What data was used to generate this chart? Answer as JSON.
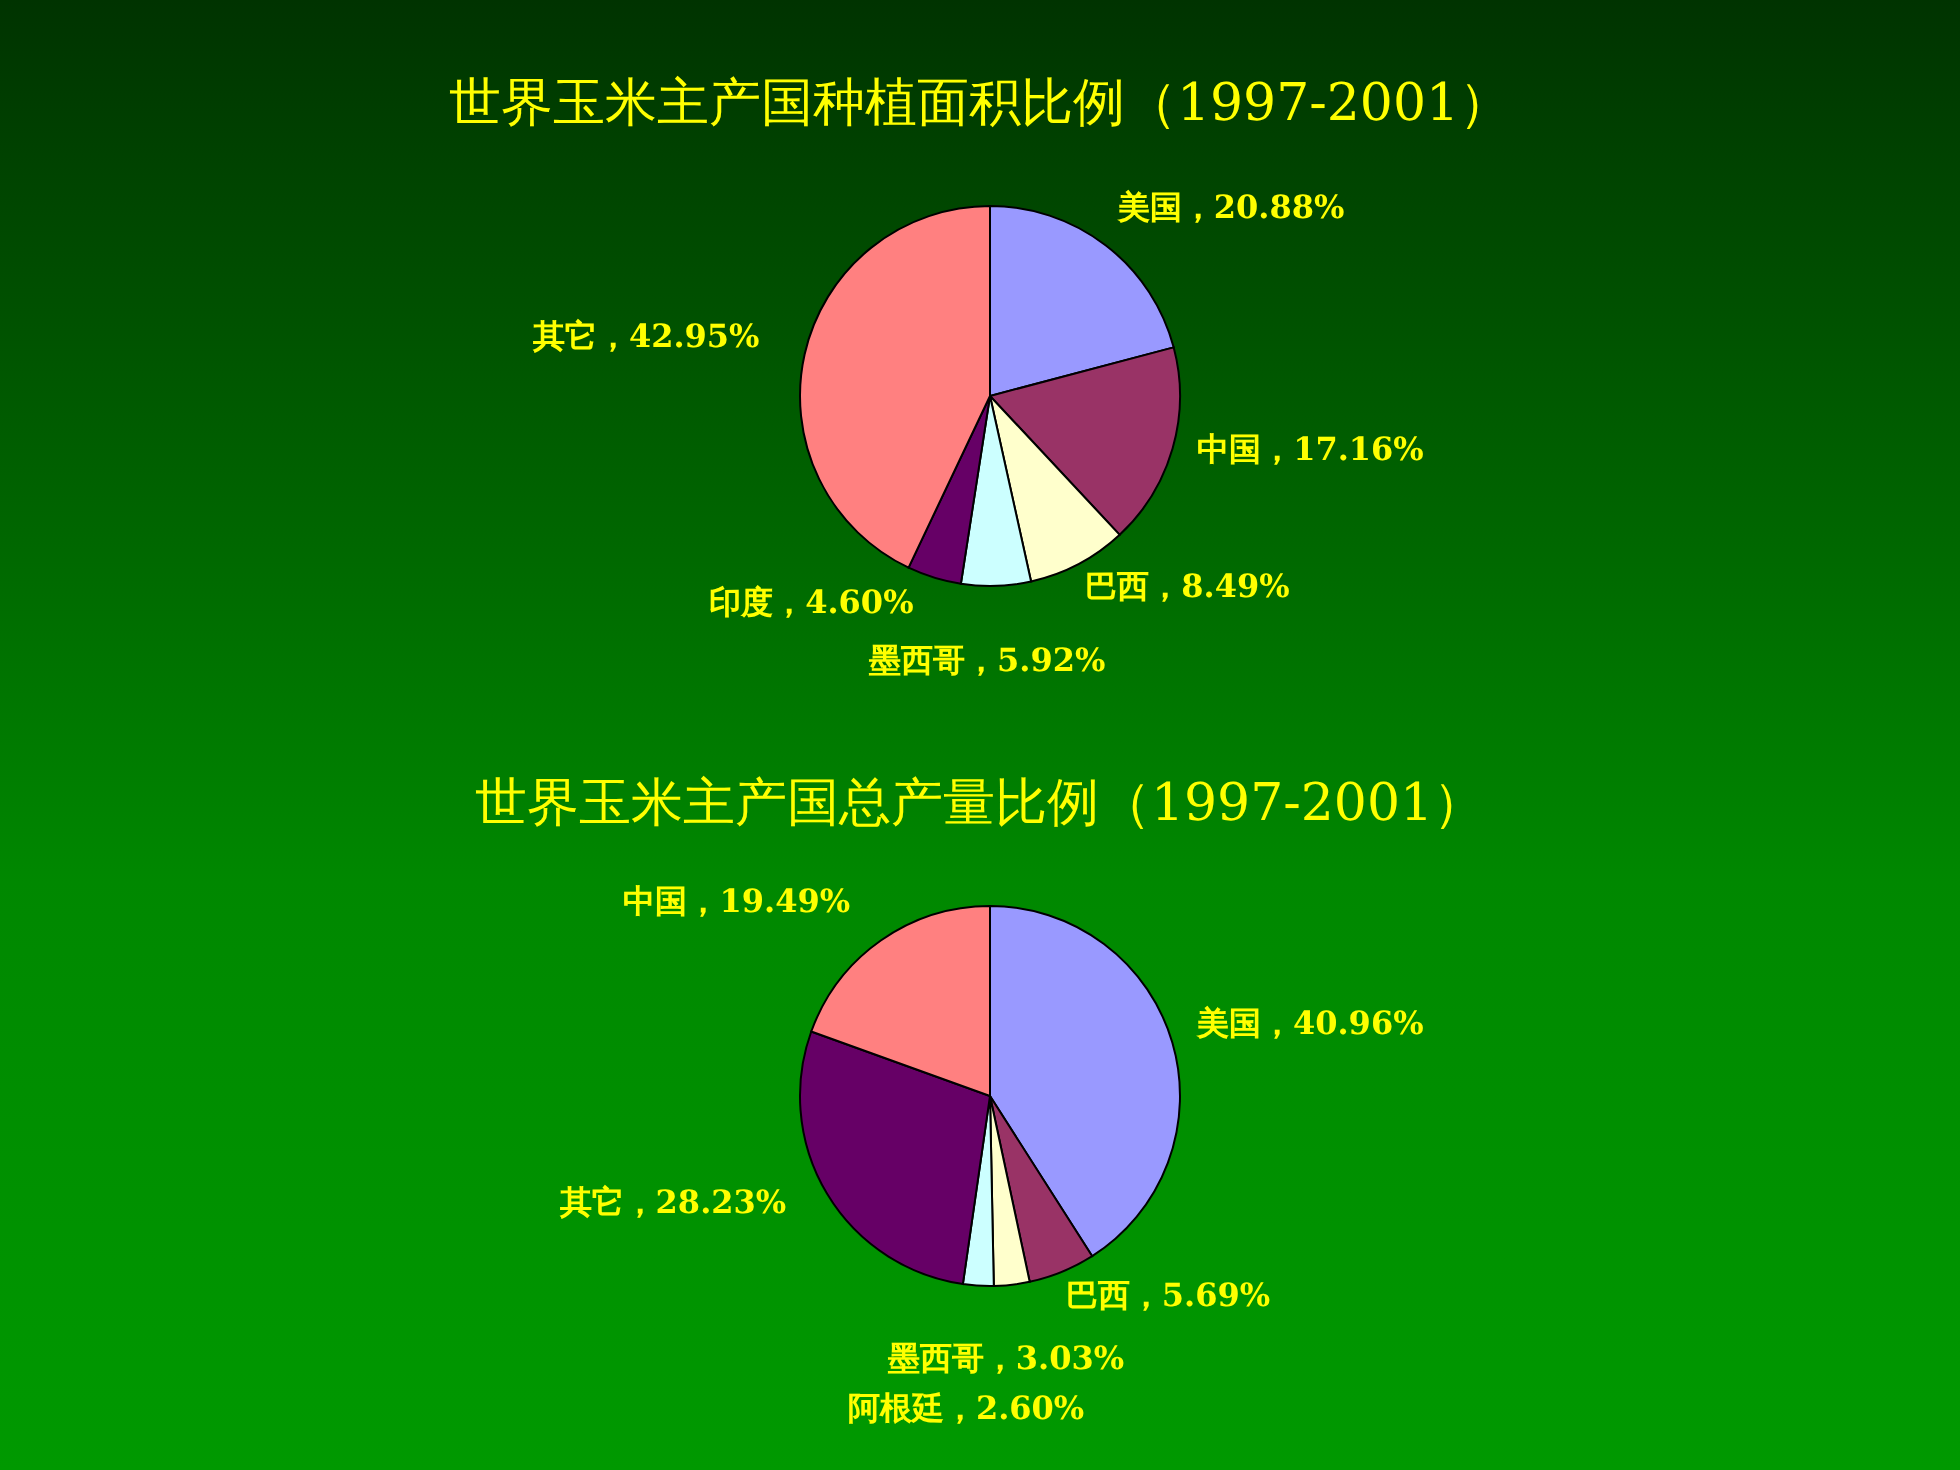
{
  "chart_data": [
    {
      "type": "pie",
      "title": "世界玉米主产国种植面积比例（1997-2001）",
      "categories": [
        "美国",
        "中国",
        "巴西",
        "墨西哥",
        "印度",
        "其它"
      ],
      "values": [
        20.88,
        17.16,
        8.49,
        5.92,
        4.6,
        42.95
      ],
      "colors": [
        "#9999ff",
        "#993366",
        "#ffffcc",
        "#ccffff",
        "#660066",
        "#ff8080"
      ],
      "value_labels": [
        "20.88%",
        "17.16%",
        "8.49%",
        "5.92%",
        "4.60%",
        "42.95%"
      ]
    },
    {
      "type": "pie",
      "title": "世界玉米主产国总产量比例（1997-2001）",
      "categories": [
        "美国",
        "巴西",
        "墨西哥",
        "阿根廷",
        "其它",
        "中国"
      ],
      "values": [
        40.96,
        5.69,
        3.03,
        2.6,
        28.23,
        19.49
      ],
      "colors": [
        "#9999ff",
        "#993366",
        "#ffffcc",
        "#ccffff",
        "#660066",
        "#ff8080"
      ],
      "value_labels": [
        "40.96%",
        "5.69%",
        "3.03%",
        "2.60%",
        "28.23%",
        "19.49%"
      ]
    }
  ]
}
